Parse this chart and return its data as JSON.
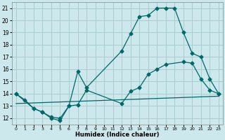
{
  "title": "",
  "xlabel": "Humidex (Indice chaleur)",
  "background_color": "#cce8ec",
  "grid_color": "#aacccc",
  "line_color": "#006868",
  "xlim": [
    -0.5,
    23.5
  ],
  "ylim": [
    11.5,
    21.5
  ],
  "xticks": [
    0,
    1,
    2,
    3,
    4,
    5,
    6,
    7,
    8,
    9,
    10,
    11,
    12,
    13,
    14,
    15,
    16,
    17,
    18,
    19,
    20,
    21,
    22,
    23
  ],
  "yticks": [
    12,
    13,
    14,
    15,
    16,
    17,
    18,
    19,
    20,
    21
  ],
  "curve1_x": [
    0,
    1,
    2,
    3,
    4,
    5,
    6,
    7,
    8,
    12,
    13,
    14,
    15,
    16,
    17,
    18,
    19,
    20,
    21,
    22,
    23
  ],
  "curve1_y": [
    14.0,
    13.5,
    12.8,
    12.5,
    12.0,
    11.8,
    13.0,
    15.8,
    14.5,
    17.5,
    18.9,
    20.3,
    20.4,
    21.0,
    21.0,
    21.0,
    19.0,
    17.3,
    17.0,
    15.2,
    14.0
  ],
  "curve2_x": [
    0,
    2,
    3,
    4,
    5,
    6,
    7,
    8,
    12,
    13,
    14,
    15,
    16,
    17,
    19,
    20,
    21,
    22,
    23
  ],
  "curve2_y": [
    14.0,
    12.8,
    12.5,
    12.1,
    12.0,
    13.0,
    13.1,
    14.3,
    13.2,
    14.2,
    14.5,
    15.6,
    16.0,
    16.4,
    16.6,
    16.5,
    15.2,
    14.3,
    14.0
  ],
  "curve3_x": [
    0,
    23
  ],
  "curve3_y": [
    13.2,
    13.8
  ]
}
